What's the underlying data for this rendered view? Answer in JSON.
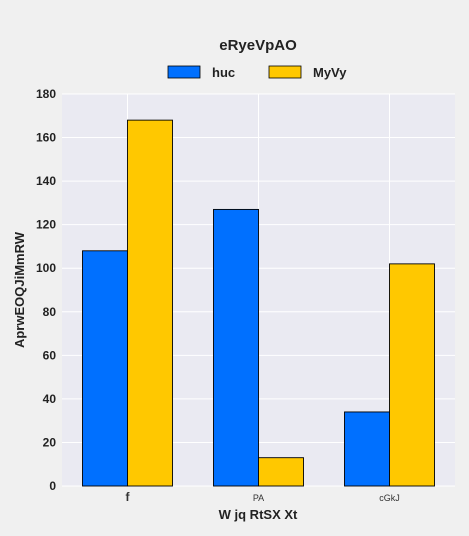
{
  "chart_data": {
    "type": "bar",
    "title": "eRyeVpAO",
    "xlabel": "W jq  RtSX Xt",
    "ylabel": "AprwEOQJiMmRW",
    "categories": [
      "f",
      "PA",
      "cGkJ"
    ],
    "series": [
      {
        "name": "huc",
        "color": "#0070ff",
        "values": [
          108,
          127,
          34
        ]
      },
      {
        "name": "MyVy",
        "color": "#ffc800",
        "values": [
          168,
          13,
          102
        ]
      }
    ],
    "ylim": [
      0,
      180
    ],
    "yticks": [
      0,
      20,
      40,
      60,
      80,
      100,
      120,
      140,
      160,
      180
    ],
    "grid": true,
    "legend_position": "top-center",
    "plot_background": "#eaeaf2"
  }
}
